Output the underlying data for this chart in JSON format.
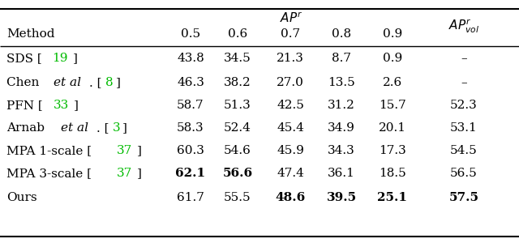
{
  "rows": [
    {
      "method_parts": [
        {
          "text": "SDS [",
          "style": "normal"
        },
        {
          "text": "19",
          "style": "green"
        },
        {
          "text": "]",
          "style": "normal"
        }
      ],
      "values": [
        "43.8",
        "34.5",
        "21.3",
        "8.7",
        "0.9",
        "–"
      ],
      "bold": [
        false,
        false,
        false,
        false,
        false,
        false
      ]
    },
    {
      "method_parts": [
        {
          "text": "Chen ",
          "style": "normal"
        },
        {
          "text": "et al",
          "style": "italic"
        },
        {
          "text": ". [",
          "style": "normal"
        },
        {
          "text": "8",
          "style": "green"
        },
        {
          "text": "]",
          "style": "normal"
        }
      ],
      "values": [
        "46.3",
        "38.2",
        "27.0",
        "13.5",
        "2.6",
        "–"
      ],
      "bold": [
        false,
        false,
        false,
        false,
        false,
        false
      ]
    },
    {
      "method_parts": [
        {
          "text": "PFN [",
          "style": "normal"
        },
        {
          "text": "33",
          "style": "green"
        },
        {
          "text": "]",
          "style": "normal"
        }
      ],
      "values": [
        "58.7",
        "51.3",
        "42.5",
        "31.2",
        "15.7",
        "52.3"
      ],
      "bold": [
        false,
        false,
        false,
        false,
        false,
        false
      ]
    },
    {
      "method_parts": [
        {
          "text": "Arnab ",
          "style": "normal"
        },
        {
          "text": "et al",
          "style": "italic"
        },
        {
          "text": ". [",
          "style": "normal"
        },
        {
          "text": "3",
          "style": "green"
        },
        {
          "text": "]",
          "style": "normal"
        }
      ],
      "values": [
        "58.3",
        "52.4",
        "45.4",
        "34.9",
        "20.1",
        "53.1"
      ],
      "bold": [
        false,
        false,
        false,
        false,
        false,
        false
      ]
    },
    {
      "method_parts": [
        {
          "text": "MPA 1-scale [",
          "style": "normal"
        },
        {
          "text": "37",
          "style": "green"
        },
        {
          "text": "]",
          "style": "normal"
        }
      ],
      "values": [
        "60.3",
        "54.6",
        "45.9",
        "34.3",
        "17.3",
        "54.5"
      ],
      "bold": [
        false,
        false,
        false,
        false,
        false,
        false
      ]
    },
    {
      "method_parts": [
        {
          "text": "MPA 3-scale [",
          "style": "normal"
        },
        {
          "text": "37",
          "style": "green"
        },
        {
          "text": "]",
          "style": "normal"
        }
      ],
      "values": [
        "62.1",
        "56.6",
        "47.4",
        "36.1",
        "18.5",
        "56.5"
      ],
      "bold": [
        true,
        true,
        false,
        false,
        false,
        false
      ]
    },
    {
      "method_parts": [
        {
          "text": "Ours",
          "style": "normal"
        }
      ],
      "values": [
        "61.7",
        "55.5",
        "48.6",
        "39.5",
        "25.1",
        "57.5"
      ],
      "bold": [
        false,
        false,
        true,
        true,
        true,
        true
      ]
    }
  ],
  "background_color": "#ffffff",
  "text_color": "#000000",
  "green_color": "#00bb00",
  "font_size": 11.0,
  "line_color": "#000000"
}
